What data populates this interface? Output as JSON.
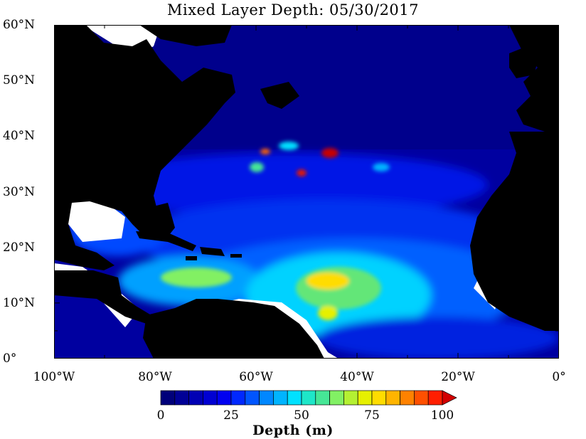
{
  "title": "Mixed Layer Depth: 05/30/2017",
  "axes": {
    "x_ticks": [
      {
        "value": -100,
        "label": "100°W"
      },
      {
        "value": -80,
        "label": "80°W"
      },
      {
        "value": -60,
        "label": "60°W"
      },
      {
        "value": -40,
        "label": "40°W"
      },
      {
        "value": -20,
        "label": "20°W"
      },
      {
        "value": 0,
        "label": "0°"
      }
    ],
    "y_ticks": [
      {
        "value": 0,
        "label": "0°"
      },
      {
        "value": 10,
        "label": "10°N"
      },
      {
        "value": 20,
        "label": "20°N"
      },
      {
        "value": 30,
        "label": "30°N"
      },
      {
        "value": 40,
        "label": "40°N"
      },
      {
        "value": 50,
        "label": "50°N"
      },
      {
        "value": 60,
        "label": "60°N"
      }
    ],
    "lon_range": [
      -100,
      0
    ],
    "lat_range": [
      0,
      60
    ]
  },
  "colorbar": {
    "label": "Depth (m)",
    "min": 0,
    "max": 100,
    "ticks": [
      {
        "value": 0,
        "label": "0"
      },
      {
        "value": 25,
        "label": "25"
      },
      {
        "value": 50,
        "label": "50"
      },
      {
        "value": 75,
        "label": "75"
      },
      {
        "value": 100,
        "label": "100"
      }
    ],
    "colors": [
      "#00007a",
      "#000096",
      "#0000b4",
      "#0000d2",
      "#0000f0",
      "#0028ff",
      "#0055ff",
      "#0087ff",
      "#00b4ff",
      "#00e1ff",
      "#1ee6c8",
      "#46e696",
      "#82f064",
      "#b4f032",
      "#e6f000",
      "#ffdc00",
      "#ffb400",
      "#ff8200",
      "#ff5000",
      "#ff1e00",
      "#d20000"
    ],
    "land_color": "#000000",
    "nodata_color": "#ffffff"
  }
}
